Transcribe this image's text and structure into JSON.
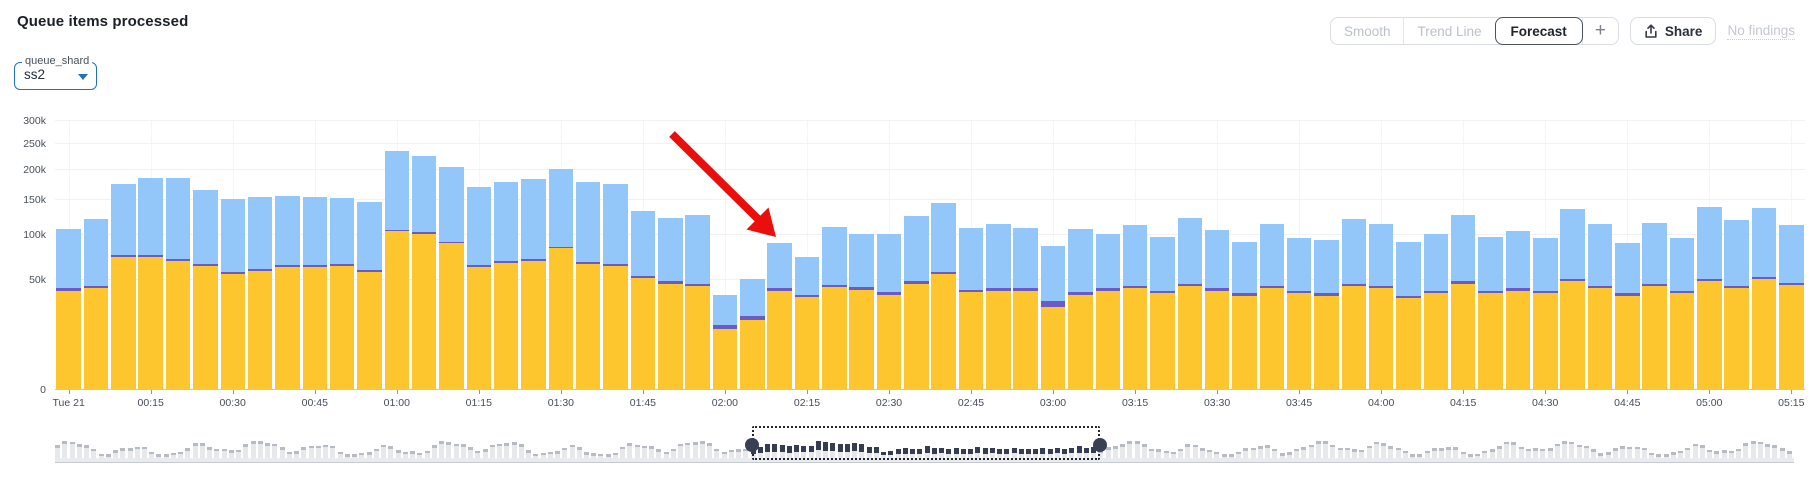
{
  "header": {
    "title": "Queue items processed",
    "controls": {
      "smooth_label": "Smooth",
      "trend_line_label": "Trend Line",
      "forecast_label": "Forecast",
      "add_label": "+",
      "share_label": "Share",
      "no_findings_label": "No findings"
    }
  },
  "filter": {
    "label": "queue_shard",
    "value": "ss2"
  },
  "annotation": {
    "type": "arrow",
    "color": "#e90f0c",
    "points_at": "drop in processed items around 02:00"
  },
  "chart_data": {
    "type": "bar",
    "stacked": true,
    "title": "Queue items processed",
    "y_scale": "sqrt",
    "ylim_k": [
      0,
      300
    ],
    "y_tick_labels": [
      "0",
      "50k",
      "100k",
      "150k",
      "200k",
      "250k",
      "300k"
    ],
    "y_tick_values_k": [
      0,
      50,
      100,
      150,
      200,
      250,
      300
    ],
    "grid": true,
    "legend": "none",
    "bar_interval_minutes": 5,
    "x_tick_labels": [
      "Tue 21",
      "00:15",
      "00:30",
      "00:45",
      "01:00",
      "01:15",
      "01:30",
      "01:45",
      "02:00",
      "02:15",
      "02:30",
      "02:45",
      "03:00",
      "03:15",
      "03:30",
      "03:45",
      "04:00",
      "04:15",
      "04:30",
      "04:45",
      "05:00",
      "05:15"
    ],
    "series": [
      {
        "name": "bottom segment",
        "color": "#fec62e",
        "unit": "thousands",
        "values_k": [
          40,
          42,
          72,
          72,
          68,
          63,
          55,
          58,
          62,
          62,
          63,
          57,
          103,
          100,
          88,
          62,
          66,
          68,
          82,
          65,
          63,
          51,
          46,
          44,
          15,
          20,
          40,
          35,
          43,
          41,
          37,
          46,
          55,
          39,
          40,
          40,
          28,
          37,
          40,
          42,
          38,
          44,
          40,
          36,
          42,
          38,
          36,
          44,
          42,
          34,
          38,
          46,
          38,
          40,
          38,
          48,
          42,
          36,
          44,
          38,
          48,
          42,
          50,
          45
        ]
      },
      {
        "name": "middle segment",
        "color": "#6a5bc7",
        "unit": "thousands",
        "values_k": [
          2,
          2,
          2,
          2,
          2,
          2,
          2,
          2,
          2,
          2,
          2,
          2,
          2,
          2,
          2,
          2,
          2,
          2,
          2,
          2,
          2,
          2,
          2,
          2,
          2,
          2,
          2,
          2,
          2,
          2,
          2,
          2,
          2,
          2,
          2,
          2,
          4,
          2,
          2,
          2,
          2,
          2,
          2,
          2,
          2,
          2,
          2,
          2,
          2,
          2,
          2,
          2,
          2,
          2,
          2,
          2,
          2,
          2,
          2,
          2,
          2,
          2,
          2,
          2
        ]
      },
      {
        "name": "top segment",
        "color": "#93c6f9",
        "unit": "thousands",
        "values_k": [
          64,
          76,
          101,
          111,
          115,
          100,
          93,
          93,
          91,
          89,
          87,
          86,
          130,
          123,
          115,
          106,
          110,
          113,
          116,
          110,
          109,
          78,
          74,
          80,
          20,
          28,
          47,
          35,
          64,
          57,
          61,
          76,
          87,
          66,
          71,
          66,
          53,
          67,
          58,
          68,
          56,
          76,
          63,
          52,
          69,
          55,
          54,
          74,
          69,
          54,
          60,
          77,
          56,
          62,
          55,
          85,
          69,
          50,
          69,
          55,
          88,
          74,
          84,
          65
        ]
      }
    ],
    "totals_k": [
      106,
      120,
      175,
      185,
      185,
      165,
      150,
      153,
      155,
      153,
      152,
      145,
      235,
      225,
      205,
      170,
      178,
      183,
      200,
      177,
      174,
      131,
      122,
      126,
      37,
      50,
      89,
      72,
      109,
      100,
      100,
      124,
      144,
      107,
      113,
      108,
      85,
      106,
      100,
      112,
      96,
      122,
      105,
      90,
      113,
      95,
      92,
      120,
      113,
      90,
      100,
      125,
      96,
      104,
      95,
      135,
      113,
      88,
      115,
      95,
      138,
      118,
      136,
      112
    ]
  },
  "minimap": {
    "selection_start_pct": 40.1,
    "selection_end_pct": 60.1,
    "selected_bar_color": "#363c55",
    "unselected_cap_color": "#b7bbc3",
    "bar_body_color": "#e7e8eb"
  }
}
